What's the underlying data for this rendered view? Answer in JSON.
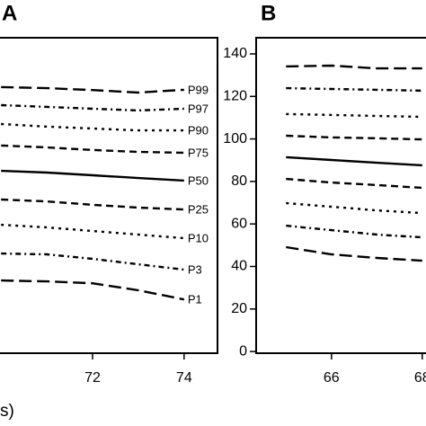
{
  "chart_data": [
    {
      "type": "line",
      "title": "A",
      "xlabel": "s)",
      "x": [
        70,
        71,
        72,
        73,
        74
      ],
      "xlim": [
        69.82,
        74.73
      ],
      "ylim": [
        -0.8,
        147.6
      ],
      "xticks": [
        72,
        74
      ],
      "color": "#000000",
      "series": [
        {
          "name": "P99",
          "linestyle": "longdash",
          "values": [
            124.4,
            123.9,
            123.0,
            121.8,
            123.1
          ]
        },
        {
          "name": "P97",
          "linestyle": "dashdot",
          "values": [
            115.9,
            115.1,
            114.2,
            113.4,
            114.2
          ]
        },
        {
          "name": "P90",
          "linestyle": "dotted",
          "values": [
            107.0,
            105.8,
            104.9,
            104.0,
            104.0
          ]
        },
        {
          "name": "P75",
          "linestyle": "dashed",
          "values": [
            96.9,
            96.0,
            94.8,
            93.9,
            93.5
          ]
        },
        {
          "name": "P50",
          "linestyle": "solid",
          "values": [
            85.0,
            84.2,
            82.9,
            81.6,
            80.4
          ]
        },
        {
          "name": "P25",
          "linestyle": "dashed",
          "values": [
            71.5,
            70.6,
            69.0,
            67.7,
            66.8
          ]
        },
        {
          "name": "P10",
          "linestyle": "dotted",
          "values": [
            59.6,
            58.4,
            56.7,
            55.0,
            53.3
          ]
        },
        {
          "name": "P3",
          "linestyle": "dashdot",
          "values": [
            46.1,
            45.7,
            43.6,
            41.0,
            38.5
          ]
        },
        {
          "name": "P1",
          "linestyle": "longdash",
          "values": [
            33.4,
            33.0,
            32.1,
            28.8,
            24.5
          ]
        }
      ]
    },
    {
      "type": "line",
      "title": "B",
      "x": [
        65,
        66,
        67,
        68
      ],
      "xlim": [
        64.34,
        68.4
      ],
      "ylim": [
        -0.8,
        147.6
      ],
      "xticks": [
        66,
        68
      ],
      "yticks": [
        0,
        20,
        40,
        60,
        80,
        100,
        120,
        140
      ],
      "color": "#000000",
      "series": [
        {
          "linestyle": "longdash",
          "values": [
            134.1,
            134.5,
            133.2,
            133.2
          ]
        },
        {
          "linestyle": "dashdot",
          "values": [
            123.9,
            123.5,
            123.1,
            122.7
          ]
        },
        {
          "linestyle": "dotted",
          "values": [
            111.7,
            111.3,
            110.8,
            110.4
          ]
        },
        {
          "linestyle": "dashed",
          "values": [
            101.5,
            100.7,
            100.3,
            99.8
          ]
        },
        {
          "linestyle": "solid",
          "values": [
            91.4,
            90.1,
            88.8,
            87.6
          ]
        },
        {
          "linestyle": "dashed",
          "values": [
            81.2,
            79.5,
            78.3,
            77.0
          ]
        },
        {
          "linestyle": "dotted",
          "values": [
            69.8,
            68.1,
            66.4,
            65.1
          ]
        },
        {
          "linestyle": "dashdot",
          "values": [
            59.2,
            57.1,
            55.0,
            53.7
          ]
        },
        {
          "linestyle": "longdash",
          "values": [
            49.1,
            45.7,
            44.0,
            42.7
          ]
        }
      ]
    }
  ]
}
